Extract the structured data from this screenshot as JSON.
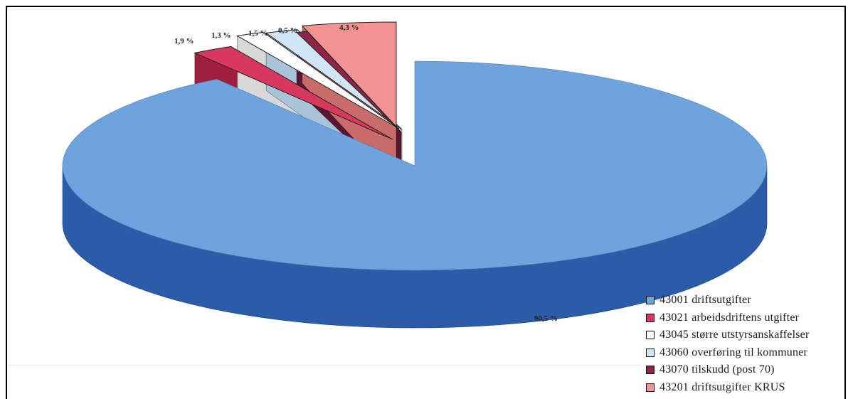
{
  "chart_data": {
    "type": "pie",
    "three_d": true,
    "title": "",
    "categories": [
      "43001 driftsutgifter",
      "43021 arbeidsdriftens utgifter",
      "43045 større utstyrsanskaffelser",
      "43060 overføring til kommuner",
      "43070 tilskudd (post 70)",
      "43201 driftsutgifter KRUS"
    ],
    "values": [
      90.5,
      1.9,
      1.3,
      1.5,
      0.5,
      4.3
    ],
    "data_labels": [
      "90,5 %",
      "1,9 %",
      "1,3 %",
      "1,5 %",
      "0,5 %",
      "4,3 %"
    ],
    "colors": [
      "#6fa3dc",
      "#d8385e",
      "#ffffff",
      "#cfe6f6",
      "#8e2448",
      "#f49492"
    ],
    "side_colors": [
      "#2c5ba8",
      "#9e1f3f",
      "#d8d8d8",
      "#a9c4d8",
      "#5a1630",
      "#c86c6a"
    ],
    "legend_position": "bottom-right",
    "exploded": [
      "43021 arbeidsdriftens utgifter",
      "43045 større utstyrsanskaffelser",
      "43060 overføring til kommuner",
      "43070 tilskudd (post 70)",
      "43201 driftsutgifter KRUS"
    ]
  }
}
